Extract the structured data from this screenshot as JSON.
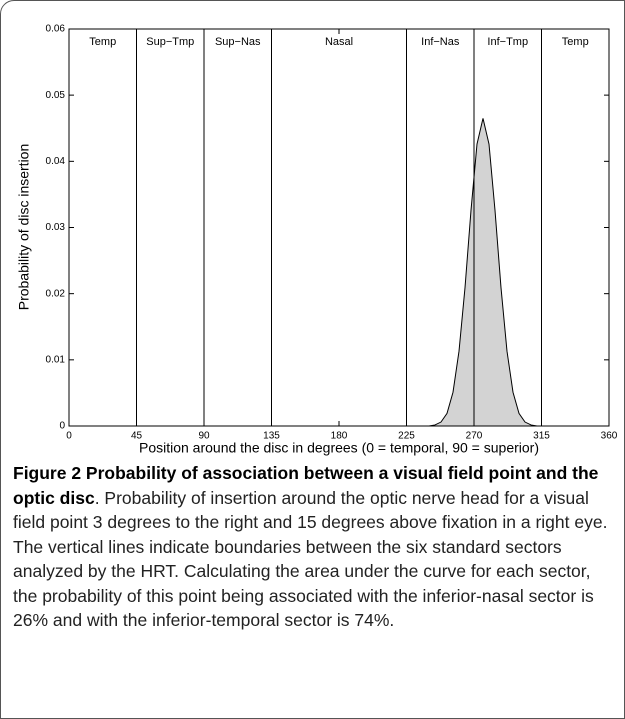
{
  "chart_data": {
    "type": "area",
    "xlabel": "Position around the disc in degrees (0  = temporal, 90 = superior)",
    "ylabel": "Probability of disc insertion",
    "x": [
      0,
      240,
      244,
      248,
      252,
      256,
      260,
      264,
      268,
      272,
      276,
      280,
      284,
      288,
      292,
      296,
      300,
      304,
      308,
      312,
      360
    ],
    "values": [
      0,
      0,
      0.00016,
      0.0006,
      0.0019,
      0.0051,
      0.0113,
      0.0209,
      0.0326,
      0.0426,
      0.0465,
      0.0426,
      0.0326,
      0.0209,
      0.0113,
      0.0051,
      0.0019,
      0.0006,
      0.00016,
      0,
      0
    ],
    "color": "#d3d3d3",
    "xlim": [
      0,
      360
    ],
    "xticks": [
      0,
      45,
      90,
      135,
      180,
      225,
      270,
      315,
      360
    ],
    "ylim": [
      0,
      0.06
    ],
    "yticks": [
      0,
      0.01,
      0.02,
      0.03,
      0.04,
      0.05,
      0.06
    ],
    "boundaries": [
      45,
      90,
      135,
      225,
      270,
      315
    ],
    "sectors": [
      "Temp",
      "Sup−Tmp",
      "Sup−Nas",
      "Nasal",
      "Inf−Nas",
      "Inf−Tmp",
      "Temp"
    ],
    "grid": false
  },
  "caption": {
    "title": "Figure 2 Probability of association between a visual field point and the optic disc",
    "text": ". Probability of insertion around the optic nerve head for a visual field point 3 degrees to the right and 15 degrees above fixation in a right eye. The vertical lines indicate boundaries between the six standard sectors analyzed by the HRT. Calculating the area under the curve for each sector, the probability of this point being associated with the inferior-nasal sector is 26% and with the inferior-temporal sector is 74%."
  }
}
